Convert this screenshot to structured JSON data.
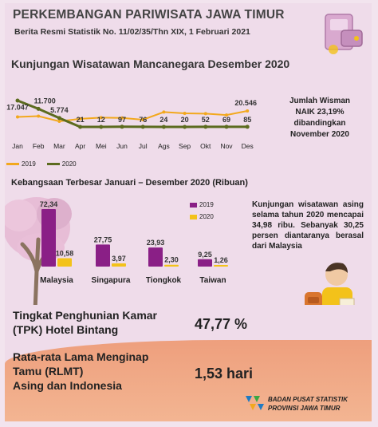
{
  "header": {
    "title": "PERKEMBANGAN PARIWISATA JAWA TIMUR",
    "subtitle": "Berita Resmi Statistik No. 11/02/35/Thn XIX, 1 Februari 2021"
  },
  "visits": {
    "section_title": "Kunjungan Wisatawan Mancanegara Desember 2020",
    "note_lines": [
      "Jumlah Wisman",
      "NAIK  23,19%",
      "dibandingkan",
      "November 2020"
    ]
  },
  "nationality": {
    "section_title": "Kebangsaan Terbesar  Januari  – Desember 2020 (Ribuan)",
    "paragraph": "Kunjungan wisatawan asing selama tahun 2020 mencapai 34,98 ribu. Sebanyak 30,25 persen diantaranya berasal dari Malaysia"
  },
  "tpk": {
    "label_line1": "Tingkat Penghunian Kamar",
    "label_line2": "(TPK) Hotel Bintang",
    "value": "47,77 %"
  },
  "rlmt": {
    "label_line1": "Rata-rata Lama Menginap",
    "label_line2": "Tamu (RLMT)",
    "label_line3": "Asing dan Indonesia",
    "value": "1,53 hari"
  },
  "footer": {
    "org_line1": "BADAN PUSAT STATISTIK",
    "org_line2": "PROVINSI JAWA TIMUR"
  },
  "colors": {
    "line_2019": "#f2a81d",
    "line_2020": "#5c6b1f",
    "bar_2019": "#8a1f86",
    "bar_2020": "#f3c21a",
    "orange_band": "#ee9f7d"
  },
  "chart_data": [
    {
      "type": "line",
      "x": [
        "Jan",
        "Feb",
        "Mar",
        "Apr",
        "Mei",
        "Jun",
        "Jul",
        "Ags",
        "Sep",
        "Okt",
        "Nov",
        "Des"
      ],
      "series": [
        {
          "name": "2019",
          "values": [
            16500,
            17000,
            13500,
            15200,
            16000,
            15800,
            14600,
            19800,
            18900,
            18700,
            17800,
            20546
          ],
          "labels": [
            "",
            "",
            "",
            "",
            "",
            "",
            "",
            "",
            "",
            "",
            "",
            "20.546"
          ]
        },
        {
          "name": "2020",
          "values": [
            17047,
            11700,
            5774,
            21,
            12,
            97,
            76,
            24,
            20,
            52,
            69,
            85
          ],
          "labels": [
            "17.047",
            "11.700",
            "5.774",
            "21",
            "12",
            "97",
            "76",
            "24",
            "20",
            "52",
            "69",
            "85"
          ]
        }
      ],
      "legend": "bottom-left"
    },
    {
      "type": "bar",
      "categories": [
        "Malaysia",
        "Singapura",
        "Tiongkok",
        "Taiwan"
      ],
      "series": [
        {
          "name": "2019",
          "values": [
            72.34,
            27.75,
            23.93,
            9.25
          ],
          "labels": [
            "72,34",
            "27,75",
            "23,93",
            "9,25"
          ]
        },
        {
          "name": "2020",
          "values": [
            10.58,
            3.97,
            2.3,
            1.26
          ],
          "labels": [
            "10,58",
            "3,97",
            "2,30",
            "1,26"
          ]
        }
      ],
      "legend": "top-right"
    }
  ]
}
